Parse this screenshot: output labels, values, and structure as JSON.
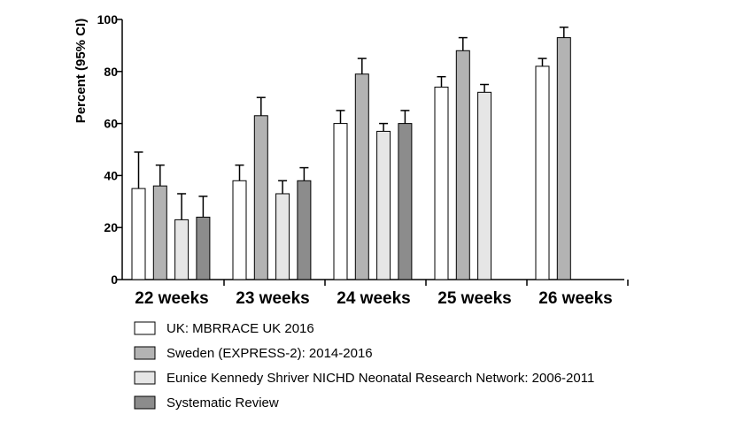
{
  "chart_data": {
    "type": "bar",
    "title": "",
    "xlabel": "",
    "ylabel": "Percent (95% CI)",
    "ylim": [
      0,
      100
    ],
    "yticks": [
      0,
      20,
      40,
      60,
      80,
      100
    ],
    "grid": false,
    "legend_position": "bottom",
    "categories": [
      "22 weeks",
      "23 weeks",
      "24 weeks",
      "25 weeks",
      "26 weeks"
    ],
    "series": [
      {
        "name": "UK: MBRRACE UK 2016",
        "color": "#ffffff",
        "values": [
          35,
          38,
          60,
          74,
          82
        ],
        "ci_upper": [
          49,
          44,
          65,
          78,
          85
        ]
      },
      {
        "name": "Sweden (EXPRESS-2): 2014-2016",
        "color": "#b3b3b3",
        "values": [
          36,
          63,
          79,
          88,
          93
        ],
        "ci_upper": [
          44,
          70,
          85,
          93,
          97
        ]
      },
      {
        "name": "Eunice Kennedy Shriver NICHD Neonatal Research Network: 2006-2011",
        "color": "#e6e6e6",
        "values": [
          23,
          33,
          57,
          72,
          null
        ],
        "ci_upper": [
          33,
          38,
          60,
          75,
          null
        ]
      },
      {
        "name": "Systematic Review",
        "color": "#8c8c8c",
        "values": [
          24,
          38,
          60,
          null,
          null
        ],
        "ci_upper": [
          32,
          43,
          65,
          null,
          null
        ]
      }
    ]
  }
}
